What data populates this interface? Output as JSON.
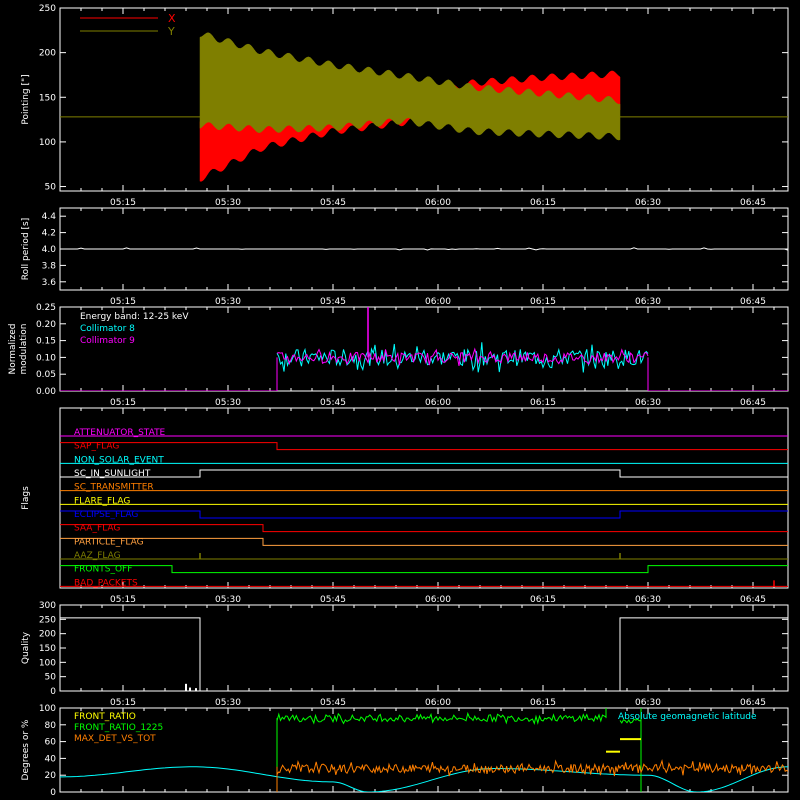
{
  "colors": {
    "bg": "#000000",
    "axis": "#ffffff",
    "x": "#ff0000",
    "y": "#7f7f00",
    "cyan": "#00ffff",
    "magenta": "#ff00ff",
    "green": "#00ff00",
    "orange": "#ff7f00",
    "yellow": "#ffff00",
    "blue": "#0000ff",
    "olive": "#7f7f00",
    "white": "#ffffff",
    "lightorange": "#ffa040"
  },
  "time_axis": {
    "start": "05:06",
    "end": "06:50",
    "ticks": [
      "05:15",
      "05:30",
      "05:45",
      "06:00",
      "06:15",
      "06:30",
      "06:45"
    ]
  },
  "chart_data": [
    {
      "type": "area",
      "ylabel": "Pointing [\"]",
      "ylim": [
        45,
        250
      ],
      "yticks": [
        "50",
        "100",
        "150",
        "200",
        "250"
      ],
      "legend": [
        {
          "name": "X",
          "color": "#ff0000"
        },
        {
          "name": "Y",
          "color": "#7f7f00"
        }
      ],
      "baseline": 128,
      "series": [
        {
          "name": "X",
          "t_start": "05:26",
          "t_end": "06:26",
          "low": [
            {
              "t": "05:26",
              "v": 55
            },
            {
              "t": "05:35",
              "v": 90
            },
            {
              "t": "05:45",
              "v": 108
            },
            {
              "t": "05:55",
              "v": 118
            },
            {
              "t": "06:05",
              "v": 128
            },
            {
              "t": "06:15",
              "v": 132
            },
            {
              "t": "06:26",
              "v": 135
            }
          ],
          "high": [
            {
              "t": "05:26",
              "v": 130
            },
            {
              "t": "05:35",
              "v": 125
            },
            {
              "t": "05:45",
              "v": 128
            },
            {
              "t": "05:55",
              "v": 150
            },
            {
              "t": "06:05",
              "v": 170
            },
            {
              "t": "06:15",
              "v": 176
            },
            {
              "t": "06:26",
              "v": 180
            }
          ]
        },
        {
          "name": "Y",
          "t_start": "05:26",
          "t_end": "06:26",
          "low": [
            {
              "t": "05:26",
              "v": 115
            },
            {
              "t": "05:35",
              "v": 110
            },
            {
              "t": "05:45",
              "v": 112
            },
            {
              "t": "05:55",
              "v": 120
            },
            {
              "t": "06:05",
              "v": 108
            },
            {
              "t": "06:15",
              "v": 105
            },
            {
              "t": "06:26",
              "v": 102
            }
          ],
          "high": [
            {
              "t": "05:26",
              "v": 225
            },
            {
              "t": "05:35",
              "v": 205
            },
            {
              "t": "05:45",
              "v": 190
            },
            {
              "t": "05:55",
              "v": 178
            },
            {
              "t": "06:05",
              "v": 165
            },
            {
              "t": "06:15",
              "v": 158
            },
            {
              "t": "06:26",
              "v": 150
            }
          ]
        }
      ]
    },
    {
      "type": "line",
      "ylabel": "Roll period [s]",
      "ylim": [
        3.5,
        4.5
      ],
      "yticks": [
        "3.6",
        "3.8",
        "4.0",
        "4.2",
        "4.4"
      ],
      "series": [
        {
          "name": "",
          "value": 4.0,
          "t_start": "05:06",
          "t_end": "06:50"
        }
      ]
    },
    {
      "type": "line",
      "ylabel": "Normalized modulation",
      "ylim": [
        0,
        0.25
      ],
      "yticks": [
        "0.00",
        "0.05",
        "0.10",
        "0.15",
        "0.20",
        "0.25"
      ],
      "annotations": [
        "Energy band: 12-25 keV"
      ],
      "series": [
        {
          "name": "Collimator 8",
          "color": "#00ffff",
          "t_start": "05:37",
          "t_end": "06:30",
          "mean": 0.1,
          "noise": 0.025
        },
        {
          "name": "Collimator 9",
          "color": "#ff00ff",
          "t_start": "05:37",
          "t_end": "06:30",
          "mean": 0.1,
          "noise": 0.015,
          "spike": {
            "t": "05:50",
            "v": 0.25
          }
        }
      ]
    },
    {
      "type": "line",
      "ylabel": "Flags",
      "series": [
        {
          "name": "ATTENUATOR_STATE",
          "color": "#ff00ff",
          "steps": [
            {
              "t": "05:06",
              "s": 0
            }
          ]
        },
        {
          "name": "SAP_FLAG",
          "color": "#ff0000",
          "steps": [
            {
              "t": "05:06",
              "s": 1
            },
            {
              "t": "05:37",
              "s": 0
            }
          ]
        },
        {
          "name": "NON_SOLAR_EVENT",
          "color": "#00ffff",
          "steps": [
            {
              "t": "05:06",
              "s": 0
            }
          ]
        },
        {
          "name": "SC_IN_SUNLIGHT",
          "color": "#ffffff",
          "steps": [
            {
              "t": "05:06",
              "s": 0
            },
            {
              "t": "05:26",
              "s": 1
            },
            {
              "t": "06:26",
              "s": 0
            }
          ]
        },
        {
          "name": "SC_TRANSMITTER",
          "color": "#ff7f00",
          "steps": [
            {
              "t": "05:06",
              "s": 0
            }
          ]
        },
        {
          "name": "FLARE_FLAG",
          "color": "#ffff00",
          "steps": [
            {
              "t": "05:06",
              "s": 0
            }
          ]
        },
        {
          "name": "ECLIPSE_FLAG",
          "color": "#0000ff",
          "steps": [
            {
              "t": "05:06",
              "s": 1
            },
            {
              "t": "05:26",
              "s": 0
            },
            {
              "t": "06:26",
              "s": 1
            }
          ]
        },
        {
          "name": "SAA_FLAG",
          "color": "#ff0000",
          "steps": [
            {
              "t": "05:06",
              "s": 1
            },
            {
              "t": "05:35",
              "s": 0
            }
          ]
        },
        {
          "name": "PARTICLE_FLAG",
          "color": "#ffa040",
          "steps": [
            {
              "t": "05:06",
              "s": 1
            },
            {
              "t": "05:35",
              "s": 0
            }
          ]
        },
        {
          "name": "AAZ_FLAG",
          "color": "#7f7f00",
          "steps": [
            {
              "t": "05:06",
              "s": 0
            }
          ],
          "blips": [
            "05:26",
            "06:26"
          ]
        },
        {
          "name": "FRONTS_OFF",
          "color": "#00ff00",
          "steps": [
            {
              "t": "05:06",
              "s": 1
            },
            {
              "t": "05:22",
              "s": 0
            },
            {
              "t": "06:30",
              "s": 1
            }
          ]
        },
        {
          "name": "BAD_PACKETS",
          "color": "#ff0000",
          "steps": [
            {
              "t": "05:06",
              "s": 0
            }
          ],
          "blips": [
            "06:48"
          ]
        }
      ]
    },
    {
      "type": "line",
      "ylabel": "Quality",
      "ylim": [
        0,
        300
      ],
      "yticks": [
        "0",
        "50",
        "100",
        "150",
        "200",
        "250",
        "300"
      ],
      "series": [
        {
          "name": "",
          "color": "#ffffff",
          "steps": [
            {
              "t": "05:06",
              "v": 255
            },
            {
              "t": "05:26",
              "v": 0
            },
            {
              "t": "06:26",
              "v": 255
            }
          ],
          "blips": [
            {
              "t": "05:26.5",
              "v": 25
            },
            {
              "t": "05:27",
              "v": 12
            },
            {
              "t": "05:28",
              "v": 10
            }
          ]
        }
      ]
    },
    {
      "type": "line",
      "ylabel": "Degrees or %",
      "ylim": [
        0,
        100
      ],
      "yticks": [
        "0",
        "20",
        "40",
        "60",
        "80",
        "100"
      ],
      "annotations": [
        "Absolute geomagnetic latitude"
      ],
      "series": [
        {
          "name": "FRONT_RATIO",
          "color": "#ffff00",
          "segments": [
            {
              "t_start": "06:24",
              "t_end": "06:26",
              "v": 48
            },
            {
              "t_start": "06:26",
              "t_end": "06:29",
              "v": 63
            }
          ]
        },
        {
          "name": "FRONT_RATIO_1225",
          "color": "#00ff00",
          "t_start": "05:37",
          "t_end": "06:30",
          "mean": 88,
          "noise": 4,
          "high_segment": {
            "t_start": "06:24",
            "t_end": "06:29",
            "v": 103
          }
        },
        {
          "name": "MAX_DET_VS_TOT",
          "color": "#ff7f00",
          "t_start": "05:37",
          "t_end": "06:50",
          "mean": 28,
          "noise": 5
        },
        {
          "name": "Absolute geomagnetic latitude",
          "color": "#00ffff",
          "points": [
            {
              "t": "05:06",
              "v": 18
            },
            {
              "t": "05:25",
              "v": 30
            },
            {
              "t": "05:45",
              "v": 12
            },
            {
              "t": "05:50",
              "v": 0
            },
            {
              "t": "06:08",
              "v": 28
            },
            {
              "t": "06:30",
              "v": 20
            },
            {
              "t": "06:37",
              "v": 0
            },
            {
              "t": "06:50",
              "v": 30
            }
          ]
        }
      ]
    }
  ]
}
